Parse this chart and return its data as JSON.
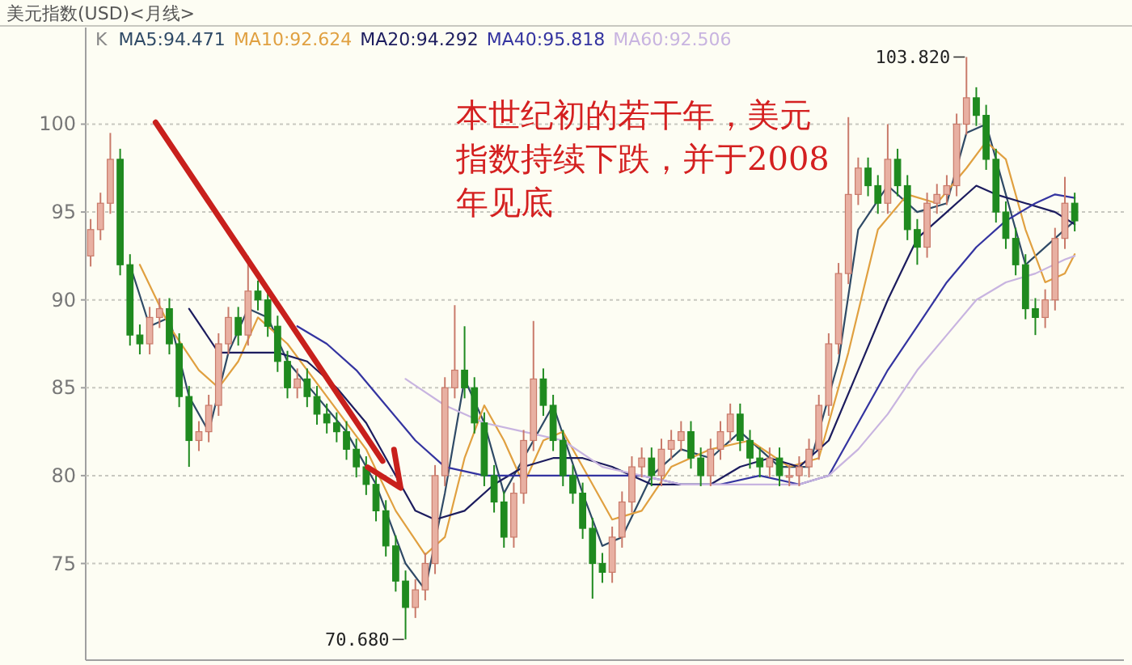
{
  "chart_data": {
    "type": "candlestick",
    "title": "美元指数(USD)<月线>",
    "categories": [
      null,
      null,
      null,
      null,
      null,
      null,
      null,
      null,
      null,
      null,
      null,
      null,
      null,
      null,
      null,
      null,
      null,
      null,
      null,
      null,
      null,
      null,
      null,
      null,
      null,
      null,
      null,
      null,
      null,
      null,
      null,
      null,
      null,
      null,
      null,
      null,
      null,
      null,
      null,
      null,
      null,
      null,
      null,
      null,
      null,
      null,
      null,
      null,
      null,
      null,
      null,
      null,
      null,
      null,
      null,
      null,
      null,
      null,
      null,
      null,
      null,
      null,
      null,
      null,
      null,
      null,
      null,
      null,
      null,
      null,
      null,
      null,
      null,
      null,
      null,
      null,
      null,
      null,
      null,
      null,
      null,
      null,
      null,
      null,
      null,
      null,
      null,
      null,
      null,
      null,
      null,
      null,
      null,
      null,
      null,
      null,
      null,
      null,
      null,
      null,
      null
    ],
    "ohlc": [
      [
        92.5,
        94.6,
        91.9,
        94
      ],
      [
        94,
        96.1,
        93.4,
        95.5
      ],
      [
        95.5,
        99.5,
        94.9,
        98
      ],
      [
        98,
        98.6,
        91.4,
        92
      ],
      [
        92,
        92.6,
        87.4,
        88
      ],
      [
        88,
        88.6,
        86.9,
        87.5
      ],
      [
        87.5,
        89.6,
        86.9,
        89
      ],
      [
        89,
        90.1,
        88.4,
        89.5
      ],
      [
        89.5,
        90.1,
        86.9,
        87.5
      ],
      [
        87.5,
        88.1,
        83.9,
        84.5
      ],
      [
        84.5,
        85.1,
        80.5,
        82
      ],
      [
        82,
        83.1,
        81.4,
        82.5
      ],
      [
        82.5,
        84.6,
        81.9,
        84
      ],
      [
        84,
        88.1,
        83.4,
        87.5
      ],
      [
        87.5,
        89.6,
        86.9,
        89
      ],
      [
        89,
        89.6,
        87.4,
        88
      ],
      [
        88,
        92.5,
        87.4,
        90.5
      ],
      [
        90.5,
        91.1,
        89.4,
        90
      ],
      [
        90,
        90.6,
        87.9,
        88.5
      ],
      [
        88.5,
        89.1,
        85.9,
        86.5
      ],
      [
        86.5,
        87.1,
        84.4,
        85
      ],
      [
        85,
        86.1,
        84.4,
        85.5
      ],
      [
        85.5,
        86.1,
        83.9,
        84.5
      ],
      [
        84.5,
        85.1,
        82.9,
        83.5
      ],
      [
        83.5,
        84.1,
        82.4,
        83
      ],
      [
        83,
        83.6,
        81.9,
        82.5
      ],
      [
        82.5,
        83.1,
        80.9,
        81.5
      ],
      [
        81.5,
        82.1,
        79.9,
        80.5
      ],
      [
        80.5,
        81.1,
        78.9,
        79.5
      ],
      [
        79.5,
        80.1,
        77.4,
        78
      ],
      [
        78,
        78.6,
        75.4,
        76
      ],
      [
        76,
        76.6,
        73.4,
        74
      ],
      [
        74,
        74.6,
        70.68,
        72.5
      ],
      [
        72.5,
        74.1,
        71.9,
        73.5
      ],
      [
        73.5,
        75.6,
        72.9,
        75
      ],
      [
        75,
        80.6,
        74.4,
        80
      ],
      [
        80,
        85.6,
        79.4,
        85
      ],
      [
        85,
        89.7,
        84.4,
        86
      ],
      [
        86,
        88.5,
        84.4,
        85
      ],
      [
        85,
        85.6,
        82.4,
        83
      ],
      [
        83,
        83.6,
        79.4,
        80
      ],
      [
        80,
        80.6,
        77.9,
        78.5
      ],
      [
        78.5,
        79.1,
        75.9,
        76.5
      ],
      [
        76.5,
        79.6,
        75.9,
        79
      ],
      [
        79,
        82.6,
        78.4,
        82
      ],
      [
        82,
        88.8,
        81.4,
        85.5
      ],
      [
        85.5,
        86.1,
        83.4,
        84
      ],
      [
        84,
        84.6,
        81.4,
        82
      ],
      [
        82,
        82.6,
        79.4,
        80
      ],
      [
        80,
        80.6,
        78.4,
        79
      ],
      [
        79,
        79.6,
        76.4,
        77
      ],
      [
        77,
        77.6,
        73,
        75
      ],
      [
        75,
        75.6,
        73.9,
        74.5
      ],
      [
        74.5,
        77.1,
        73.9,
        76.5
      ],
      [
        76.5,
        79.1,
        75.9,
        78.5
      ],
      [
        78.5,
        81.1,
        77.9,
        80.5
      ],
      [
        80.5,
        81.6,
        79.9,
        81
      ],
      [
        81,
        81.6,
        79.4,
        80
      ],
      [
        80,
        82.1,
        79.4,
        81.5
      ],
      [
        81.5,
        82.6,
        80.9,
        82
      ],
      [
        82,
        83.1,
        81.4,
        82.5
      ],
      [
        82.5,
        83.1,
        80.4,
        81
      ],
      [
        81,
        81.6,
        79.4,
        80
      ],
      [
        80,
        82.1,
        79.4,
        81.5
      ],
      [
        81.5,
        83.1,
        80.9,
        82.5
      ],
      [
        82.5,
        84.1,
        81.9,
        83.5
      ],
      [
        83.5,
        84.1,
        81.4,
        82
      ],
      [
        82,
        82.6,
        80.4,
        81
      ],
      [
        81,
        81.6,
        79.9,
        80.5
      ],
      [
        80.5,
        81.6,
        79.9,
        81
      ],
      [
        81,
        81.6,
        79.4,
        80
      ],
      [
        80,
        80.6,
        79.4,
        80
      ],
      [
        80,
        81.1,
        79.4,
        80.5
      ],
      [
        80.5,
        82.1,
        79.9,
        81.5
      ],
      [
        81.5,
        84.6,
        80.9,
        84
      ],
      [
        84,
        88.1,
        83.4,
        87.5
      ],
      [
        87.5,
        92.1,
        86.9,
        91.5
      ],
      [
        91.5,
        100.4,
        90.9,
        96
      ],
      [
        96,
        98.1,
        95.4,
        97.5
      ],
      [
        97.5,
        98.1,
        95.9,
        96.5
      ],
      [
        96.5,
        97.1,
        94.9,
        95.5
      ],
      [
        95.5,
        100,
        94.9,
        98
      ],
      [
        98,
        98.6,
        95.9,
        96.5
      ],
      [
        96.5,
        97.1,
        93.4,
        94
      ],
      [
        94,
        94.6,
        92,
        93
      ],
      [
        93,
        96.1,
        92.4,
        95.5
      ],
      [
        95.5,
        96.6,
        94.9,
        96
      ],
      [
        96,
        97.1,
        95.4,
        96.5
      ],
      [
        96.5,
        100.6,
        95.9,
        100
      ],
      [
        100,
        103.82,
        99.4,
        101.5
      ],
      [
        101.5,
        102.1,
        99.9,
        100.5
      ],
      [
        100.5,
        101.1,
        97.4,
        98
      ],
      [
        98,
        98.6,
        94.4,
        95
      ],
      [
        95,
        95.6,
        92.9,
        93.5
      ],
      [
        93.5,
        94.1,
        91.4,
        92
      ],
      [
        92,
        92.6,
        88.9,
        89.5
      ],
      [
        89.5,
        90.1,
        88,
        89
      ],
      [
        89,
        90.6,
        88.4,
        90
      ],
      [
        90,
        94.1,
        89.4,
        93.5
      ],
      [
        93.5,
        97,
        92.9,
        95.5
      ],
      [
        95.5,
        96.1,
        93.9,
        94.5
      ]
    ],
    "series": [
      {
        "name": "MA5:94.471",
        "type": "line",
        "color": "#2f4a66",
        "values": [
          null,
          null,
          null,
          null,
          92,
          null,
          88.5,
          null,
          89,
          null,
          84.5,
          null,
          82.5,
          null,
          87,
          null,
          89.5,
          null,
          89,
          null,
          86.5,
          null,
          null,
          84.5,
          null,
          null,
          82.5,
          null,
          null,
          79.5,
          null,
          null,
          75,
          null,
          73.5,
          null,
          79,
          null,
          85.5,
          null,
          83,
          null,
          79,
          null,
          null,
          82,
          null,
          84,
          null,
          null,
          79,
          null,
          76,
          null,
          76.5,
          null,
          null,
          80,
          null,
          null,
          81.5,
          null,
          null,
          81,
          null,
          null,
          82.5,
          null,
          null,
          null,
          80.5,
          null,
          null,
          80.5,
          null,
          null,
          86.5,
          null,
          94,
          null,
          null,
          96.5,
          null,
          null,
          95,
          null,
          null,
          95.5,
          null,
          99.5,
          null,
          100,
          null,
          96,
          null,
          92,
          null,
          null,
          null,
          null,
          94.5
        ]
      },
      {
        "name": "MA10:92.624",
        "type": "line",
        "color": "#e0a040",
        "values": [
          null,
          null,
          null,
          null,
          null,
          92,
          null,
          null,
          88.5,
          null,
          null,
          86,
          null,
          85,
          null,
          86.5,
          null,
          89,
          null,
          null,
          87.5,
          null,
          null,
          null,
          84.5,
          null,
          null,
          null,
          81.5,
          null,
          null,
          78,
          null,
          null,
          75.5,
          null,
          76.5,
          null,
          81,
          null,
          84,
          null,
          82,
          null,
          79.5,
          null,
          82,
          null,
          82.5,
          null,
          80.5,
          null,
          null,
          77.5,
          null,
          null,
          78,
          null,
          null,
          80.5,
          null,
          null,
          null,
          81.5,
          null,
          null,
          null,
          82,
          null,
          null,
          null,
          80.5,
          null,
          null,
          81,
          null,
          null,
          87,
          null,
          null,
          94,
          null,
          null,
          96,
          null,
          null,
          95.5,
          null,
          null,
          97.5,
          null,
          99,
          null,
          98,
          null,
          94,
          null,
          91,
          null,
          91.5,
          92.6
        ]
      },
      {
        "name": "MA20:94.292",
        "type": "line",
        "color": "#1c1c5e",
        "values": [
          null,
          null,
          null,
          null,
          null,
          null,
          null,
          null,
          null,
          null,
          89.5,
          null,
          null,
          87,
          null,
          null,
          87,
          null,
          null,
          87,
          null,
          null,
          86.5,
          null,
          null,
          85,
          null,
          null,
          83,
          null,
          null,
          80,
          null,
          78,
          null,
          77.5,
          null,
          null,
          78,
          null,
          null,
          79.5,
          null,
          null,
          80.5,
          null,
          null,
          81,
          null,
          null,
          81,
          null,
          null,
          80.5,
          null,
          null,
          null,
          79.5,
          null,
          null,
          79.5,
          null,
          null,
          79.5,
          null,
          null,
          80.5,
          null,
          null,
          81,
          null,
          null,
          80.5,
          null,
          null,
          82,
          null,
          null,
          86,
          null,
          null,
          90,
          null,
          null,
          93.5,
          null,
          null,
          95,
          null,
          null,
          96.5,
          null,
          96,
          null,
          null,
          95.5,
          null,
          null,
          95,
          null,
          94.3
        ]
      },
      {
        "name": "MA40:95.818",
        "type": "line",
        "color": "#3434a0",
        "values": [
          null,
          null,
          null,
          null,
          null,
          null,
          null,
          null,
          null,
          null,
          null,
          null,
          null,
          null,
          null,
          null,
          null,
          null,
          null,
          null,
          null,
          88.5,
          null,
          null,
          87.5,
          null,
          null,
          86,
          null,
          null,
          84,
          null,
          null,
          82,
          null,
          null,
          80.5,
          null,
          null,
          null,
          80,
          null,
          null,
          null,
          80,
          null,
          null,
          null,
          80,
          null,
          null,
          null,
          80,
          null,
          null,
          null,
          80,
          null,
          null,
          null,
          79.5,
          null,
          null,
          null,
          79.5,
          null,
          null,
          null,
          80,
          null,
          null,
          null,
          79.5,
          null,
          null,
          80,
          null,
          null,
          83,
          null,
          null,
          86,
          null,
          null,
          88.5,
          null,
          null,
          91,
          null,
          null,
          93,
          null,
          null,
          94.5,
          null,
          null,
          95.5,
          null,
          96,
          null,
          95.8
        ]
      },
      {
        "name": "MA60:92.506",
        "type": "line",
        "color": "#c8b4e0",
        "values": [
          null,
          null,
          null,
          null,
          null,
          null,
          null,
          null,
          null,
          null,
          null,
          null,
          null,
          null,
          null,
          null,
          null,
          null,
          null,
          null,
          null,
          null,
          null,
          null,
          null,
          null,
          null,
          null,
          null,
          null,
          null,
          null,
          85.5,
          null,
          null,
          null,
          84,
          null,
          null,
          null,
          83,
          null,
          null,
          null,
          82.5,
          null,
          null,
          null,
          82,
          null,
          null,
          null,
          80.5,
          null,
          null,
          null,
          80,
          null,
          null,
          null,
          79.5,
          null,
          null,
          null,
          79.5,
          null,
          null,
          null,
          79.5,
          null,
          null,
          null,
          79.5,
          null,
          null,
          80,
          null,
          null,
          81.5,
          null,
          null,
          83.5,
          null,
          null,
          86,
          null,
          null,
          88,
          null,
          null,
          90,
          null,
          null,
          91,
          null,
          null,
          91.5,
          null,
          null,
          92.3,
          92.5
        ]
      }
    ],
    "annotations": [
      "本世纪初的若干年，美元指数持续下跌，并于2008年见底",
      "K",
      "103.820",
      "70.680"
    ],
    "ylim": [
      69.5,
      105.5
    ],
    "yticks": [
      75,
      80,
      85,
      90,
      95,
      100
    ],
    "grid": "y",
    "line_style": "solid",
    "marker": "none"
  }
}
